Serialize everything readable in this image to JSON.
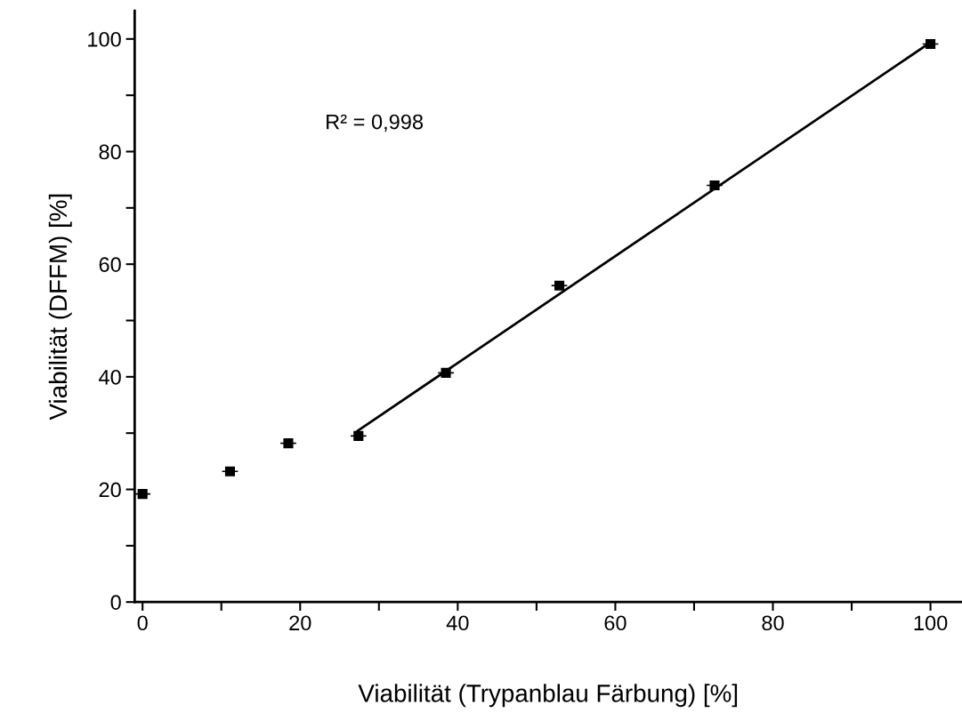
{
  "chart_data": {
    "type": "scatter",
    "xlabel": "Viabilität (Trypanblau Färbung) [%]",
    "ylabel": "Viabilität (DFFM) [%]",
    "annotations": [
      "R² = 0,998"
    ],
    "marker": "square",
    "grid": false,
    "legend": false,
    "xlim": [
      -1,
      104
    ],
    "ylim": [
      0,
      105
    ],
    "xticks": [
      0,
      {
        "value": 10,
        "label": null
      },
      20,
      {
        "value": 30,
        "label": null
      },
      40,
      {
        "value": 50,
        "label": null
      },
      60,
      {
        "value": 70,
        "label": null
      },
      80,
      {
        "value": 90,
        "label": null
      },
      100
    ],
    "yticks": [
      0,
      {
        "value": 10,
        "label": null
      },
      20,
      {
        "value": 30,
        "label": null
      },
      40,
      {
        "value": 50,
        "label": null
      },
      60,
      {
        "value": 70,
        "label": null
      },
      80,
      {
        "value": 90,
        "label": null
      },
      100
    ],
    "series": [
      {
        "color": "#000000",
        "x": [
          0,
          11.1,
          18.5,
          27.4,
          38.5,
          52.9,
          72.6,
          100
        ],
        "values": [
          19.2,
          23.2,
          28.2,
          29.5,
          40.7,
          56.2,
          74.0,
          99.1
        ],
        "xerrors": [
          1,
          1,
          1,
          1,
          1,
          1,
          1,
          1
        ]
      },
      {
        "type": "line",
        "color": "#000000",
        "x": [
          27.3,
          100
        ],
        "values": [
          30.4,
          99.4
        ],
        "marker": "none",
        "line_style": "solid"
      }
    ]
  }
}
